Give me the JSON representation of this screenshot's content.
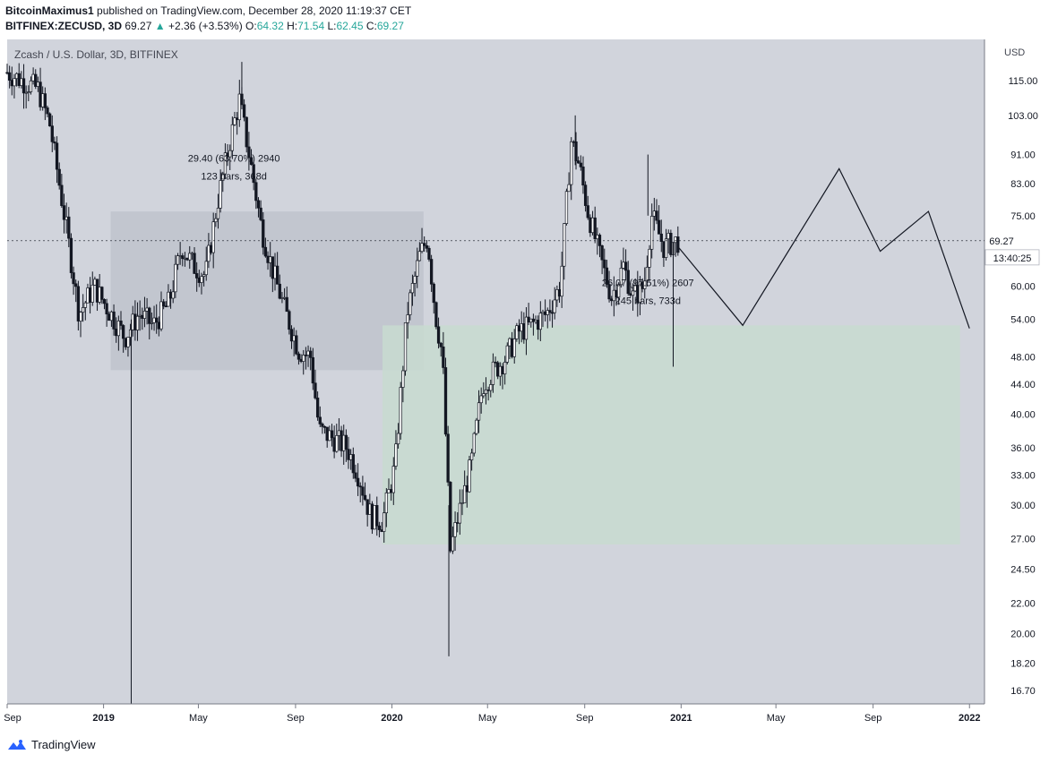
{
  "header": {
    "author": "BitcoinMaximus1",
    "published_text": "published on TradingView.com, December 28, 2020 11:19:37 CET",
    "symbol": "BITFINEX:ZECUSD, 3D",
    "last": "69.27",
    "change_arrow": "▲",
    "change": "+2.36 (+3.53%)",
    "o_label": "O:",
    "o_value": "64.32",
    "h_label": "H:",
    "h_value": "71.54",
    "l_label": "L:",
    "l_value": "62.45",
    "c_label": "C:",
    "c_value": "69.27"
  },
  "chart_data": {
    "type": "candlestick",
    "series_title": "Zcash / U.S. Dollar, 3D, BITFINEX",
    "currency_label": "USD",
    "y_scale": "log",
    "ylim": [
      16.0,
      131.0
    ],
    "y_ticks": [
      "115.00",
      "103.00",
      "91.00",
      "83.00",
      "75.00",
      "69.27",
      "60.00",
      "54.00",
      "48.00",
      "44.00",
      "40.00",
      "36.00",
      "33.00",
      "30.00",
      "27.00",
      "24.50",
      "22.00",
      "20.00",
      "18.20",
      "16.70"
    ],
    "y_tick_values": [
      115,
      103,
      91,
      83,
      75,
      60,
      54,
      48,
      44,
      40,
      36,
      33,
      30,
      27,
      24.5,
      22,
      20,
      18.2,
      16.7
    ],
    "x_ticks": [
      "Sep",
      "2019",
      "May",
      "Sep",
      "2020",
      "May",
      "Sep",
      "2021",
      "May",
      "Sep",
      "2022"
    ],
    "x_tick_dates": [
      "2018-09-01",
      "2019-01-01",
      "2019-05-01",
      "2019-09-01",
      "2020-01-01",
      "2020-05-01",
      "2020-09-01",
      "2021-01-01",
      "2021-05-01",
      "2021-09-01",
      "2022-01-01"
    ],
    "bold_x_ticks": [
      "2019",
      "2020",
      "2021",
      "2022"
    ],
    "last_price_label": "69.27",
    "countdown_label": "13:40:25",
    "price_path": [
      {
        "date": "2018-09-01",
        "value": 118
      },
      {
        "date": "2018-09-20",
        "value": 115
      },
      {
        "date": "2018-10-10",
        "value": 112
      },
      {
        "date": "2018-10-25",
        "value": 100
      },
      {
        "date": "2018-11-15",
        "value": 72
      },
      {
        "date": "2018-12-01",
        "value": 55
      },
      {
        "date": "2018-12-20",
        "value": 60
      },
      {
        "date": "2019-01-10",
        "value": 55
      },
      {
        "date": "2019-01-28",
        "value": 51
      },
      {
        "date": "2019-02-15",
        "value": 55
      },
      {
        "date": "2019-03-05",
        "value": 53
      },
      {
        "date": "2019-03-25",
        "value": 57
      },
      {
        "date": "2019-04-10",
        "value": 68
      },
      {
        "date": "2019-04-25",
        "value": 64
      },
      {
        "date": "2019-05-10",
        "value": 62
      },
      {
        "date": "2019-05-25",
        "value": 78
      },
      {
        "date": "2019-06-10",
        "value": 95
      },
      {
        "date": "2019-06-22",
        "value": 108
      },
      {
        "date": "2019-07-05",
        "value": 90
      },
      {
        "date": "2019-07-20",
        "value": 72
      },
      {
        "date": "2019-08-05",
        "value": 62
      },
      {
        "date": "2019-08-20",
        "value": 55
      },
      {
        "date": "2019-09-05",
        "value": 49
      },
      {
        "date": "2019-09-20",
        "value": 48
      },
      {
        "date": "2019-10-01",
        "value": 38
      },
      {
        "date": "2019-10-20",
        "value": 37
      },
      {
        "date": "2019-11-05",
        "value": 36
      },
      {
        "date": "2019-11-20",
        "value": 33
      },
      {
        "date": "2019-12-05",
        "value": 29
      },
      {
        "date": "2019-12-20",
        "value": 28.5
      },
      {
        "date": "2020-01-05",
        "value": 34
      },
      {
        "date": "2020-01-20",
        "value": 55
      },
      {
        "date": "2020-02-05",
        "value": 66
      },
      {
        "date": "2020-02-15",
        "value": 70
      },
      {
        "date": "2020-02-25",
        "value": 55
      },
      {
        "date": "2020-03-05",
        "value": 48
      },
      {
        "date": "2020-03-15",
        "value": 26
      },
      {
        "date": "2020-03-25",
        "value": 29
      },
      {
        "date": "2020-04-10",
        "value": 34
      },
      {
        "date": "2020-04-25",
        "value": 44
      },
      {
        "date": "2020-05-10",
        "value": 46
      },
      {
        "date": "2020-05-25",
        "value": 48
      },
      {
        "date": "2020-06-10",
        "value": 52
      },
      {
        "date": "2020-06-25",
        "value": 53
      },
      {
        "date": "2020-07-15",
        "value": 55
      },
      {
        "date": "2020-08-01",
        "value": 60
      },
      {
        "date": "2020-08-15",
        "value": 95
      },
      {
        "date": "2020-08-25",
        "value": 88
      },
      {
        "date": "2020-09-05",
        "value": 76
      },
      {
        "date": "2020-09-20",
        "value": 66
      },
      {
        "date": "2020-10-05",
        "value": 58
      },
      {
        "date": "2020-10-20",
        "value": 64
      },
      {
        "date": "2020-11-01",
        "value": 58
      },
      {
        "date": "2020-11-15",
        "value": 60
      },
      {
        "date": "2020-11-25",
        "value": 75
      },
      {
        "date": "2020-12-10",
        "value": 68
      },
      {
        "date": "2020-12-28",
        "value": 69.27
      }
    ],
    "spikes": [
      {
        "date": "2019-02-05",
        "high": 54,
        "low": 16.0
      },
      {
        "date": "2020-03-13",
        "high": 30,
        "low": 18.6
      },
      {
        "date": "2020-12-22",
        "high": 69,
        "low": 46.5
      },
      {
        "date": "2020-08-20",
        "high": 103,
        "low": 88
      },
      {
        "date": "2020-11-20",
        "high": 91,
        "low": 75
      },
      {
        "date": "2019-06-25",
        "high": 122,
        "low": 105
      }
    ],
    "annotations": [
      {
        "line1": "29.40 (63.70%) 2940",
        "line2": "123 bars, 368d",
        "date": "2019-06-15",
        "price": 89
      },
      {
        "line1": "26.07 (97.51%) 2607",
        "line2": "245 bars, 733d",
        "date": "2020-11-20",
        "price": 60
      }
    ],
    "boxes": [
      {
        "name": "gray-range-box",
        "from": "2019-01-10",
        "to": "2020-02-10",
        "top": 76,
        "bottom": 46,
        "color": "#c0c3cc"
      },
      {
        "name": "green-range-box",
        "from": "2019-12-20",
        "to": "2021-12-20",
        "top": 53,
        "bottom": 26.5,
        "color": "#c8dbd0"
      }
    ],
    "projection_path": [
      {
        "date": "2020-12-28",
        "value": 68
      },
      {
        "date": "2021-03-20",
        "value": 53
      },
      {
        "date": "2021-07-20",
        "value": 87
      },
      {
        "date": "2021-09-10",
        "value": 67
      },
      {
        "date": "2021-11-10",
        "value": 76
      },
      {
        "date": "2022-01-01",
        "value": 52.5
      }
    ],
    "colors": {
      "background": "#d1d4dc",
      "candle": "#131722",
      "last_price_line": "#131722",
      "arrow_up": "#26a69a"
    }
  },
  "footer": {
    "brand": "TradingView"
  }
}
